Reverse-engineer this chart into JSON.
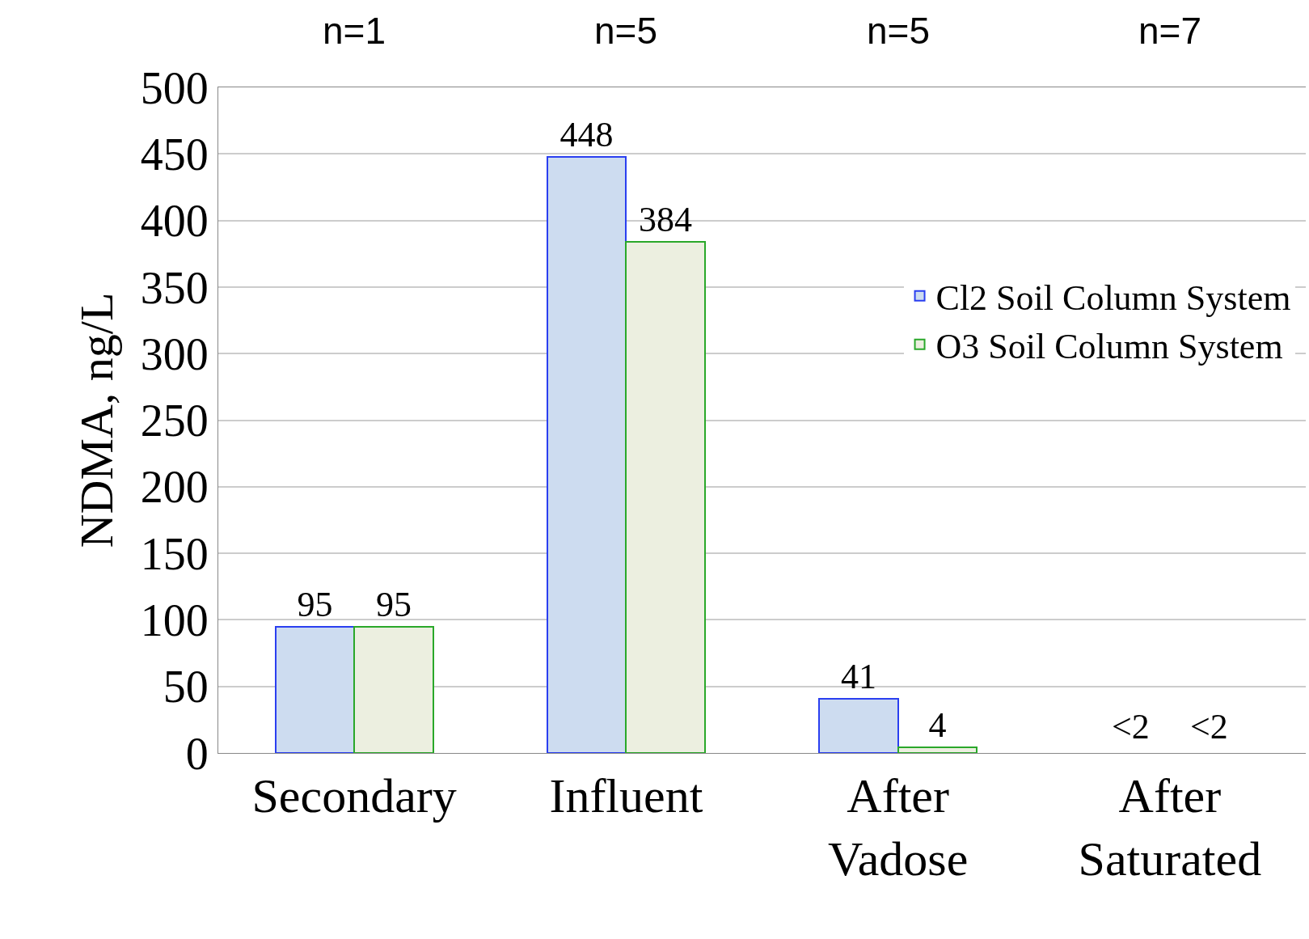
{
  "chart_data": {
    "type": "bar",
    "categories": [
      "Secondary",
      "Influent",
      "After\nVadose",
      "After\nSaturated"
    ],
    "series": [
      {
        "name": "Cl2 Soil Column System",
        "color": "#cddcf0",
        "values": [
          95,
          448,
          41,
          null
        ],
        "value_labels": [
          "95",
          "448",
          "41",
          "<2"
        ]
      },
      {
        "name": "O3 Soil Column System",
        "color": "#ecefe0",
        "values": [
          95,
          384,
          4,
          null
        ],
        "value_labels": [
          "95",
          "384",
          "4",
          "<2"
        ]
      }
    ],
    "ylabel": "NDMA, ng/L",
    "ylim": [
      0,
      500
    ],
    "yticks": [
      0,
      50,
      100,
      150,
      200,
      250,
      300,
      350,
      400,
      450,
      500
    ],
    "grid": "y",
    "legend": "right",
    "annotations": [
      "n=1",
      "n=5",
      "n=5",
      "n=7"
    ]
  }
}
